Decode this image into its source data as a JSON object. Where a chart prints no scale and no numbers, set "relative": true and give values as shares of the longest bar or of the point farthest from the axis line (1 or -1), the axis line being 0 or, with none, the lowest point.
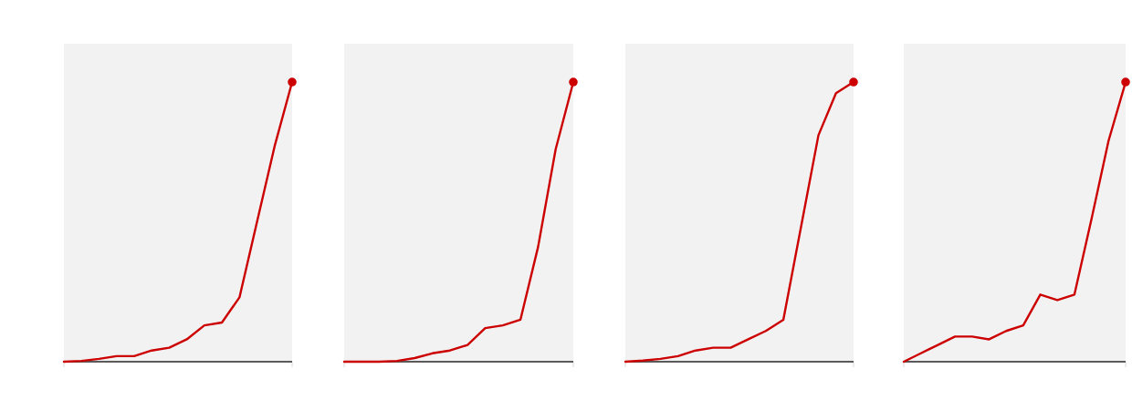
{
  "chart_data": [
    {
      "type": "line",
      "relative": true,
      "categories": [
        null,
        null,
        null,
        null,
        null,
        null,
        null,
        null,
        null,
        null,
        null,
        null,
        null,
        null
      ],
      "series": [
        {
          "color": "#cc0000",
          "values": [
            0,
            0.003,
            0.01,
            0.02,
            0.02,
            0.04,
            0.05,
            0.08,
            0.13,
            0.14,
            0.23,
            0.5,
            0.77,
            1
          ]
        }
      ]
    },
    {
      "type": "line",
      "relative": true,
      "categories": [
        null,
        null,
        null,
        null,
        null,
        null,
        null,
        null,
        null,
        null,
        null,
        null,
        null,
        null
      ],
      "series": [
        {
          "color": "#cc0000",
          "values": [
            0,
            0,
            0,
            0.003,
            0.013,
            0.03,
            0.04,
            0.06,
            0.12,
            0.13,
            0.15,
            0.41,
            0.76,
            1
          ]
        }
      ]
    },
    {
      "type": "line",
      "relative": true,
      "categories": [
        null,
        null,
        null,
        null,
        null,
        null,
        null,
        null,
        null,
        null,
        null,
        null,
        null,
        null
      ],
      "series": [
        {
          "color": "#cc0000",
          "values": [
            0,
            0.004,
            0.01,
            0.02,
            0.04,
            0.05,
            0.05,
            0.08,
            0.11,
            0.15,
            0.48,
            0.81,
            0.96,
            1
          ]
        }
      ]
    },
    {
      "type": "line",
      "relative": true,
      "categories": [
        null,
        null,
        null,
        null,
        null,
        null,
        null,
        null,
        null,
        null,
        null,
        null,
        null,
        null
      ],
      "series": [
        {
          "color": "#cc0000",
          "values": [
            0,
            0.03,
            0.06,
            0.09,
            0.09,
            0.08,
            0.11,
            0.13,
            0.24,
            0.22,
            0.24,
            0.51,
            0.79,
            1
          ]
        }
      ]
    }
  ]
}
